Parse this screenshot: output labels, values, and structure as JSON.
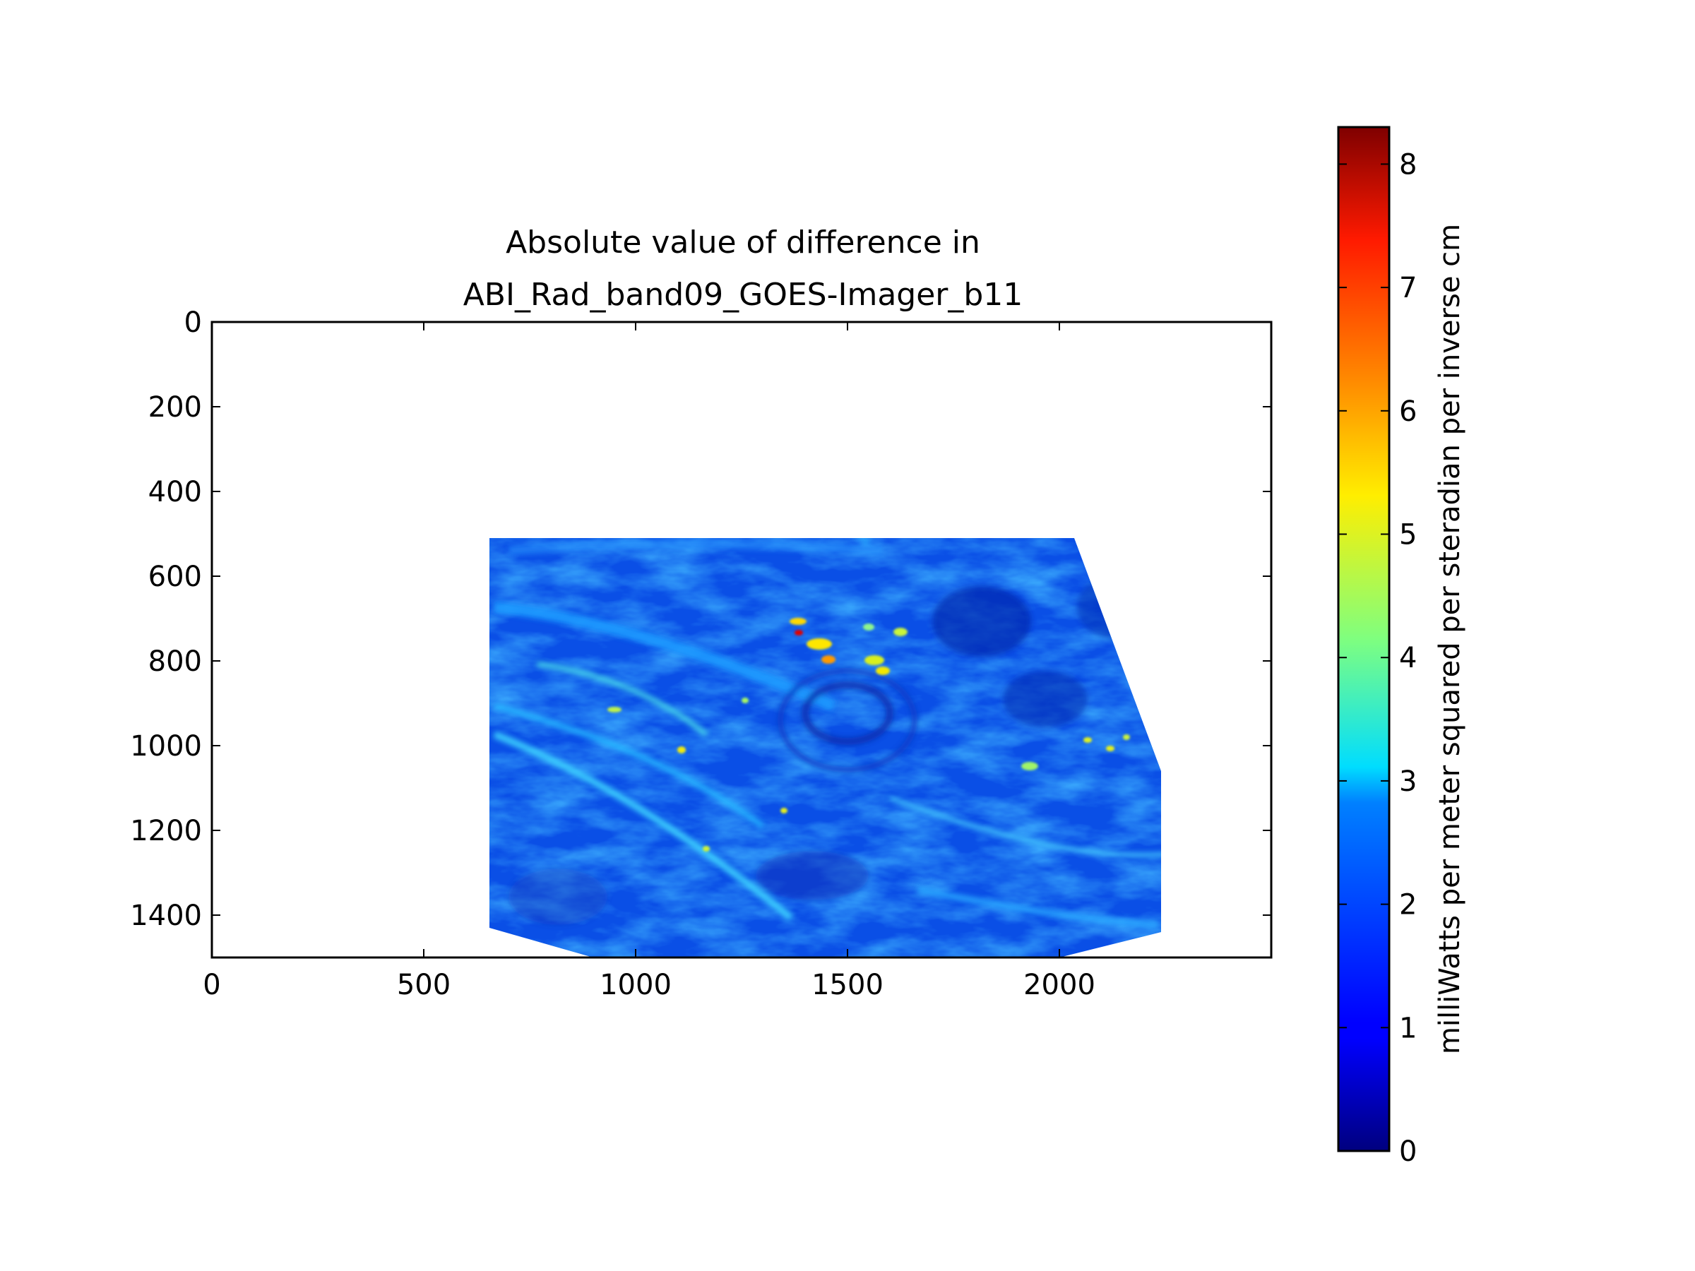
{
  "chart_data": {
    "type": "heatmap",
    "title_lines": [
      "Absolute value of difference in",
      "ABI_Rad_band09_GOES-Imager_b11"
    ],
    "x_axis": {
      "label": "",
      "range": [
        0,
        2500
      ],
      "ticks": [
        0,
        500,
        1000,
        1500,
        2000
      ]
    },
    "y_axis": {
      "label": "",
      "range": [
        0,
        1500
      ],
      "inverted": true,
      "ticks": [
        0,
        200,
        400,
        600,
        800,
        1000,
        1200,
        1400
      ]
    },
    "data_region_polygon": [
      [
        655,
        510
      ],
      [
        2035,
        510
      ],
      [
        2240,
        1060
      ],
      [
        2240,
        1440
      ],
      [
        2000,
        1500
      ],
      [
        900,
        1500
      ],
      [
        655,
        1430
      ]
    ],
    "value_range_description": "mostly 0.5-3, with streaks up to ~8",
    "colorbar": {
      "label": "milliWatts per meter squared per steradian per inverse cm",
      "range": [
        0,
        8.3
      ],
      "ticks": [
        0,
        1,
        2,
        3,
        4,
        5,
        6,
        7,
        8
      ],
      "colormap": "jet"
    },
    "grid": false
  }
}
